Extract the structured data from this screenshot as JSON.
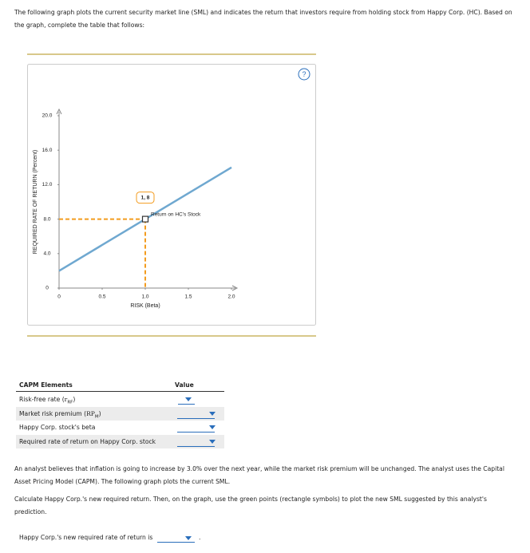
{
  "intro": "The following graph plots the current security market line (SML) and indicates the return that investors require from holding stock from Happy Corp. (HC). Based on the graph, complete the table that follows:",
  "help": "?",
  "chart_data": {
    "type": "line",
    "ylabel": "REQUIRED RATE OF RETURN (Percent)",
    "xlabel": "RISK (Beta)",
    "x": [
      0,
      2
    ],
    "values": [
      2,
      14
    ],
    "color": "#6fa8d0",
    "xlim": [
      0,
      2
    ],
    "ylim": [
      0,
      20
    ],
    "xticks": [
      0,
      0.5,
      {
        "value": 1,
        "label": "1.0"
      },
      1.5,
      {
        "value": 2,
        "label": "2.0"
      }
    ],
    "yticks": [
      0,
      {
        "value": 4,
        "label": "4.0"
      },
      {
        "value": 8,
        "label": "8.0"
      },
      {
        "value": 12,
        "label": "12.0"
      },
      {
        "value": 16,
        "label": "16.0"
      },
      {
        "value": 20,
        "label": "20.0"
      }
    ],
    "point": {
      "x": 1,
      "y": 8,
      "label": "1, 8",
      "annotation": "Return on HC's Stock",
      "color": "#f39c1f"
    }
  },
  "table": {
    "header": [
      "CAPM Elements",
      "Value"
    ],
    "rows": [
      {
        "text": "Risk-free rate (",
        "sym": "r",
        "sub": "RF",
        "close": ")"
      },
      {
        "text": "Market risk premium (",
        "sym": "RP",
        "sub": "M",
        "close": ")"
      },
      {
        "text": "Happy Corp. stock's beta"
      },
      {
        "text": "Required rate of return on Happy Corp. stock"
      }
    ]
  },
  "para1": "An analyst believes that inflation is going to increase by 3.0% over the next year, while the market risk premium will be unchanged. The analyst uses the Capital Asset Pricing Model (CAPM). The following graph plots the current SML.",
  "para2": "Calculate Happy Corp.'s new required return. Then, on the graph, use the green points (rectangle symbols) to plot the new SML suggested by this analyst's prediction.",
  "final": {
    "text": "Happy Corp.'s new required rate of return is",
    "end": "."
  }
}
